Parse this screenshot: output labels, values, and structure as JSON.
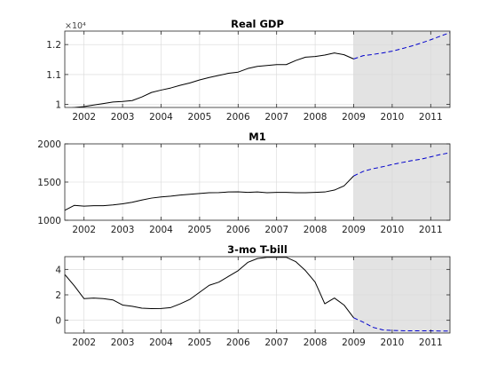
{
  "figure": {
    "background": "#ffffff",
    "forecast_shade": "#e3e3e3",
    "history_color": "#000000",
    "forecast_color": "#0000cc",
    "grid_color": "#d8d8d8",
    "forecast_start": 2009.0
  },
  "chart_data": [
    {
      "type": "line",
      "title": "Real GDP",
      "xlabel": "",
      "ylabel": "",
      "exponent_label": "×10⁴",
      "xlim": [
        2001.5,
        2011.5
      ],
      "ylim": [
        0.99,
        1.245
      ],
      "xticks": [
        2002,
        2003,
        2004,
        2005,
        2006,
        2007,
        2008,
        2009,
        2010,
        2011
      ],
      "xtick_labels": [
        "2002",
        "2003",
        "2004",
        "2005",
        "2006",
        "2007",
        "2008",
        "2009",
        "2010",
        "2011"
      ],
      "yticks": [
        1.0,
        1.1,
        1.2
      ],
      "ytick_labels": [
        "1",
        "1.1",
        "1.2"
      ],
      "grid": true,
      "series": [
        {
          "style": "solid",
          "x": [
            2001.5,
            2001.75,
            2002.0,
            2002.25,
            2002.5,
            2002.75,
            2003.0,
            2003.25,
            2003.5,
            2003.75,
            2004.0,
            2004.25,
            2004.5,
            2004.75,
            2005.0,
            2005.25,
            2005.5,
            2005.75,
            2006.0,
            2006.25,
            2006.5,
            2006.75,
            2007.0,
            2007.25,
            2007.5,
            2007.75,
            2008.0,
            2008.25,
            2008.5,
            2008.75,
            2009.0
          ],
          "y": [
            0.985,
            0.99,
            0.993,
            0.998,
            1.003,
            1.008,
            1.01,
            1.013,
            1.025,
            1.04,
            1.048,
            1.055,
            1.064,
            1.072,
            1.082,
            1.09,
            1.097,
            1.104,
            1.108,
            1.12,
            1.127,
            1.13,
            1.133,
            1.133,
            1.147,
            1.158,
            1.16,
            1.165,
            1.172,
            1.166,
            1.152
          ]
        },
        {
          "style": "dashed",
          "x": [
            2009.0,
            2009.25,
            2009.5,
            2009.75,
            2010.0,
            2010.25,
            2010.5,
            2010.75,
            2011.0,
            2011.25,
            2011.5
          ],
          "y": [
            1.152,
            1.163,
            1.167,
            1.172,
            1.178,
            1.186,
            1.195,
            1.205,
            1.216,
            1.228,
            1.24
          ]
        }
      ]
    },
    {
      "type": "line",
      "title": "M1",
      "xlabel": "",
      "ylabel": "",
      "xlim": [
        2001.5,
        2011.5
      ],
      "ylim": [
        1000,
        2000
      ],
      "xticks": [
        2002,
        2003,
        2004,
        2005,
        2006,
        2007,
        2008,
        2009,
        2010,
        2011
      ],
      "xtick_labels": [
        "2002",
        "2003",
        "2004",
        "2005",
        "2006",
        "2007",
        "2008",
        "2009",
        "2010",
        "2011"
      ],
      "yticks": [
        1000,
        1500,
        2000
      ],
      "ytick_labels": [
        "1000",
        "1500",
        "2000"
      ],
      "grid": true,
      "series": [
        {
          "style": "solid",
          "x": [
            2001.5,
            2001.75,
            2002.0,
            2002.25,
            2002.5,
            2002.75,
            2003.0,
            2003.25,
            2003.5,
            2003.75,
            2004.0,
            2004.25,
            2004.5,
            2004.75,
            2005.0,
            2005.25,
            2005.5,
            2005.75,
            2006.0,
            2006.25,
            2006.5,
            2006.75,
            2007.0,
            2007.25,
            2007.5,
            2007.75,
            2008.0,
            2008.25,
            2008.5,
            2008.75,
            2009.0
          ],
          "y": [
            1130,
            1195,
            1185,
            1190,
            1190,
            1200,
            1215,
            1235,
            1265,
            1290,
            1305,
            1315,
            1330,
            1340,
            1350,
            1360,
            1362,
            1370,
            1372,
            1365,
            1370,
            1360,
            1365,
            1365,
            1360,
            1360,
            1365,
            1370,
            1395,
            1450,
            1580
          ]
        },
        {
          "style": "dashed",
          "x": [
            2009.0,
            2009.25,
            2009.5,
            2009.75,
            2010.0,
            2010.25,
            2010.5,
            2010.75,
            2011.0,
            2011.25,
            2011.5
          ],
          "y": [
            1580,
            1640,
            1675,
            1700,
            1730,
            1755,
            1780,
            1800,
            1830,
            1860,
            1885
          ]
        }
      ]
    },
    {
      "type": "line",
      "title": "3-mo T-bill",
      "xlabel": "",
      "ylabel": "",
      "xlim": [
        2001.5,
        2011.5
      ],
      "ylim": [
        -1.0,
        5.0
      ],
      "xticks": [
        2002,
        2003,
        2004,
        2005,
        2006,
        2007,
        2008,
        2009,
        2010,
        2011
      ],
      "xtick_labels": [
        "2002",
        "2003",
        "2004",
        "2005",
        "2006",
        "2007",
        "2008",
        "2009",
        "2010",
        "2011"
      ],
      "yticks": [
        0,
        2,
        4
      ],
      "ytick_labels": [
        "0",
        "2",
        "4"
      ],
      "grid": true,
      "series": [
        {
          "style": "solid",
          "x": [
            2001.5,
            2001.75,
            2002.0,
            2002.25,
            2002.5,
            2002.75,
            2003.0,
            2003.25,
            2003.5,
            2003.75,
            2004.0,
            2004.25,
            2004.5,
            2004.75,
            2005.0,
            2005.25,
            2005.5,
            2005.75,
            2006.0,
            2006.25,
            2006.5,
            2006.75,
            2007.0,
            2007.25,
            2007.5,
            2007.75,
            2008.0,
            2008.25,
            2008.5,
            2008.75,
            2009.0
          ],
          "y": [
            3.6,
            2.7,
            1.7,
            1.75,
            1.7,
            1.6,
            1.2,
            1.1,
            0.95,
            0.92,
            0.93,
            1.0,
            1.3,
            1.65,
            2.2,
            2.75,
            3.0,
            3.45,
            3.9,
            4.55,
            4.85,
            4.95,
            4.95,
            4.95,
            4.6,
            3.9,
            3.0,
            1.3,
            1.75,
            1.2,
            0.2
          ]
        },
        {
          "style": "dashed",
          "x": [
            2009.0,
            2009.25,
            2009.5,
            2009.75,
            2010.0,
            2010.25,
            2010.5,
            2010.75,
            2011.0,
            2011.25,
            2011.5
          ],
          "y": [
            0.2,
            -0.15,
            -0.55,
            -0.75,
            -0.8,
            -0.82,
            -0.83,
            -0.83,
            -0.83,
            -0.84,
            -0.84
          ]
        }
      ]
    }
  ]
}
